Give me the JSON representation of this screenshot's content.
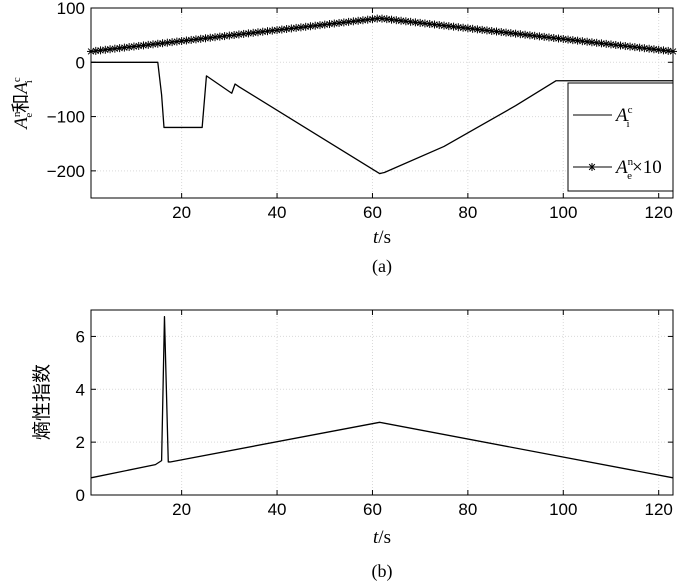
{
  "chart_data": [
    {
      "type": "line",
      "panel_label": "(a)",
      "xlabel": {
        "main": "t",
        "unit": "/s"
      },
      "ylabel": {
        "part1": "A",
        "part1_sup": "n",
        "part1_sub": "e",
        "conj": "和",
        "part2": "A",
        "part2_sup": "c",
        "part2_sub": "i"
      },
      "xlim": [
        1,
        123
      ],
      "ylim": [
        -250,
        100
      ],
      "xticks": [
        20,
        40,
        60,
        80,
        100,
        120
      ],
      "yticks": [
        -200,
        -100,
        0,
        100
      ],
      "ytick_labels": [
        "−200",
        "−100",
        "0",
        "100"
      ],
      "grid": true,
      "legend_position": "lower-right",
      "series": [
        {
          "name": {
            "base": "A",
            "sup": "c",
            "sub": "i",
            "suffix": ""
          },
          "marker": "none",
          "color": "#000000",
          "x": [
            1,
            15,
            15.8,
            16.3,
            24.3,
            25.2,
            30.5,
            31.2,
            32,
            61.5,
            62.5,
            75,
            90,
            98.5,
            123
          ],
          "y": [
            0,
            0,
            -60,
            -120,
            -120,
            -25,
            -57,
            -40,
            -45,
            -205,
            -203,
            -155,
            -80,
            -34,
            -34
          ]
        },
        {
          "name": {
            "base": "A",
            "sup": "n",
            "sub": "e",
            "suffix": "×10"
          },
          "marker": "asterisk",
          "marker_every": 1,
          "color": "#000000",
          "x": [
            1,
            61.5,
            123
          ],
          "y": [
            20,
            81,
            20
          ]
        }
      ]
    },
    {
      "type": "line",
      "panel_label": "(b)",
      "xlabel": {
        "main": "t",
        "unit": "/s"
      },
      "ylabel": "熵性指数",
      "xlim": [
        1,
        123
      ],
      "ylim": [
        0,
        7
      ],
      "xticks": [
        20,
        40,
        60,
        80,
        100,
        120
      ],
      "yticks": [
        0,
        2,
        4,
        6
      ],
      "ytick_labels": [
        "0",
        "2",
        "4",
        "6"
      ],
      "grid": true,
      "series": [
        {
          "name": "",
          "color": "#000000",
          "x": [
            1,
            14.5,
            15.8,
            16.4,
            17.2,
            17.6,
            61.5,
            123
          ],
          "y": [
            0.65,
            1.15,
            1.3,
            6.75,
            1.25,
            1.25,
            2.75,
            0.65
          ]
        }
      ]
    }
  ]
}
